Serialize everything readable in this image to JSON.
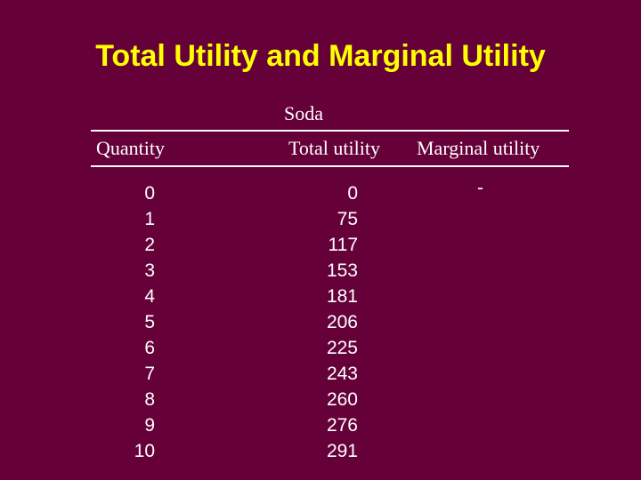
{
  "slide": {
    "title": "Total Utility and Marginal Utility",
    "group_label": "Soda",
    "headers": {
      "quantity": "Quantity",
      "total_utility": "Total utility",
      "marginal_utility": "Marginal utility"
    },
    "quantity": [
      "0",
      "1",
      "2",
      "3",
      "4",
      "5",
      "6",
      "7",
      "8",
      "9",
      "10"
    ],
    "total_utility": [
      "0",
      "75",
      "117",
      "153",
      "181",
      "206",
      "225",
      "243",
      "260",
      "276",
      "291"
    ],
    "marginal_utility_first": "-"
  },
  "colors": {
    "background": "#660039",
    "title": "#ffff00",
    "text": "#ffffff"
  }
}
